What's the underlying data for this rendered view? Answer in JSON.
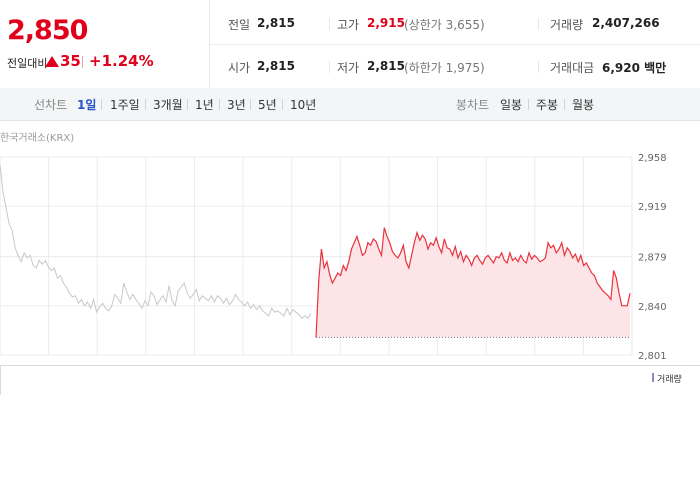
{
  "price": {
    "current": "2,850",
    "change_label": "전일대비",
    "change_value": "35",
    "change_pct": "+1.24%",
    "colors": {
      "up": "#e0001b"
    }
  },
  "stats": {
    "prev_close": {
      "label": "전일",
      "value": "2,815"
    },
    "high": {
      "label": "고가",
      "value": "2,915",
      "sub": "(상한가 3,655)"
    },
    "volume": {
      "label": "거래량",
      "value": "2,407,266"
    },
    "open": {
      "label": "시가",
      "value": "2,815"
    },
    "low": {
      "label": "저가",
      "value": "2,815",
      "sub": "(하한가 1,975)"
    },
    "amount": {
      "label": "거래대금",
      "value": "6,920 백만"
    }
  },
  "line_chart_tabs": {
    "label": "선차트",
    "items": [
      "1일",
      "1주일",
      "3개월",
      "1년",
      "3년",
      "5년",
      "10년"
    ],
    "active": "1일"
  },
  "candle_chart_tabs": {
    "label": "봉차트",
    "items": [
      "일봉",
      "주봉",
      "월봉"
    ]
  },
  "chart_meta": {
    "source": "한국거래소(KRX)",
    "volume_legend": "거래량"
  },
  "chart_data": {
    "type": "line",
    "y_ticks": [
      "2,958",
      "2,919",
      "2,879",
      "2,840",
      "2,801"
    ],
    "ylim": [
      2801,
      2958
    ],
    "prev_close": 2815,
    "grid": true,
    "series": [
      {
        "name": "prior",
        "color": "#c8c8c8",
        "values": [
          2952,
          2930,
          2918,
          2905,
          2900,
          2886,
          2880,
          2875,
          2882,
          2878,
          2880,
          2872,
          2870,
          2876,
          2873,
          2876,
          2871,
          2868,
          2870,
          2862,
          2864,
          2858,
          2855,
          2850,
          2847,
          2848,
          2842,
          2845,
          2840,
          2843,
          2838,
          2845,
          2835,
          2839,
          2842,
          2838,
          2836,
          2840,
          2849,
          2846,
          2842,
          2858,
          2851,
          2845,
          2849,
          2845,
          2842,
          2838,
          2844,
          2840,
          2851,
          2848,
          2841,
          2845,
          2848,
          2843,
          2856,
          2844,
          2840,
          2852,
          2855,
          2858,
          2850,
          2846,
          2849,
          2853,
          2844,
          2848,
          2846,
          2844,
          2848,
          2843,
          2848,
          2846,
          2842,
          2846,
          2841,
          2844,
          2849,
          2845,
          2843,
          2840,
          2843,
          2838,
          2841,
          2837,
          2840,
          2836,
          2834,
          2832,
          2838,
          2835,
          2836,
          2834,
          2832,
          2838,
          2833,
          2837,
          2835,
          2833,
          2830,
          2832,
          2830,
          2834
        ]
      },
      {
        "name": "today",
        "color": "#e8333f",
        "values": [
          2815,
          2860,
          2885,
          2870,
          2875,
          2865,
          2858,
          2862,
          2866,
          2864,
          2872,
          2868,
          2875,
          2885,
          2890,
          2895,
          2888,
          2880,
          2882,
          2890,
          2888,
          2893,
          2891,
          2885,
          2880,
          2902,
          2895,
          2890,
          2883,
          2880,
          2878,
          2882,
          2888,
          2875,
          2870,
          2880,
          2890,
          2898,
          2892,
          2896,
          2893,
          2885,
          2890,
          2888,
          2894,
          2887,
          2882,
          2893,
          2886,
          2885,
          2880,
          2887,
          2878,
          2883,
          2875,
          2880,
          2877,
          2872,
          2878,
          2880,
          2876,
          2873,
          2878,
          2880,
          2877,
          2874,
          2879,
          2878,
          2882,
          2876,
          2874,
          2882,
          2876,
          2878,
          2875,
          2880,
          2876,
          2874,
          2882,
          2877,
          2880,
          2878,
          2875,
          2876,
          2878,
          2890,
          2886,
          2888,
          2882,
          2885,
          2890,
          2880,
          2886,
          2883,
          2878,
          2881,
          2875,
          2880,
          2872,
          2874,
          2870,
          2866,
          2864,
          2858,
          2855,
          2852,
          2850,
          2848,
          2845,
          2868,
          2862,
          2850,
          2840,
          2840,
          2840,
          2850
        ]
      }
    ]
  }
}
